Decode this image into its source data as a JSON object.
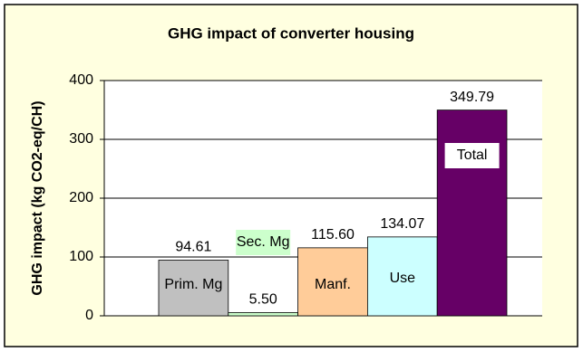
{
  "chart_data": {
    "type": "bar",
    "title": "GHG impact of converter housing",
    "y_label": "GHG impact (kg CO2-eq/CH)",
    "categories": [
      "Prim. Mg",
      "Sec. Mg",
      "Manf.",
      "Use",
      "Total"
    ],
    "values": [
      94.61,
      5.5,
      115.6,
      134.07,
      349.79
    ],
    "value_labels": [
      "94.61",
      "5.50",
      "115.60",
      "134.07",
      "349.79"
    ],
    "colors": [
      "#c0c0c0",
      "#ccffcc",
      "#ffcc99",
      "#ccffff",
      "#660066"
    ],
    "ylim": [
      0,
      400
    ],
    "yticks": [
      0,
      100,
      200,
      300,
      400
    ],
    "grid": true
  }
}
